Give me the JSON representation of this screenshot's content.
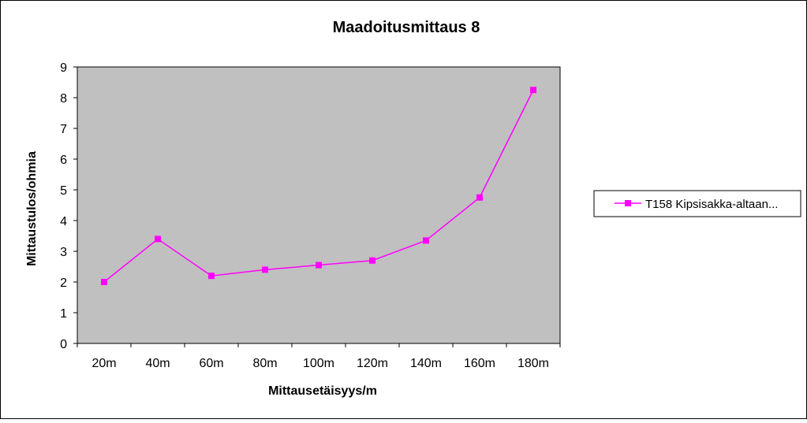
{
  "colors": {
    "plot_background": "#c0c0c0",
    "series_line": "#ff00ff",
    "axis": "#000000",
    "frame": "#000000",
    "page_background": "#ffffff"
  },
  "chart_data": {
    "type": "line",
    "title": "Maadoitusmittaus 8",
    "xlabel": "Mittausetäisyys/m",
    "ylabel": "Mittaustulos/ohmia",
    "categories": [
      "20m",
      "40m",
      "60m",
      "80m",
      "100m",
      "120m",
      "140m",
      "160m",
      "180m"
    ],
    "ylim": [
      0,
      9
    ],
    "yticks": [
      0,
      1,
      2,
      3,
      4,
      5,
      6,
      7,
      8,
      9
    ],
    "grid": false,
    "legend_position": "right",
    "series": [
      {
        "name": "T158 Kipsisakka-altaan...",
        "marker": "square",
        "values": [
          2.0,
          3.4,
          2.2,
          2.4,
          2.55,
          2.7,
          3.35,
          4.75,
          8.25
        ]
      }
    ]
  }
}
